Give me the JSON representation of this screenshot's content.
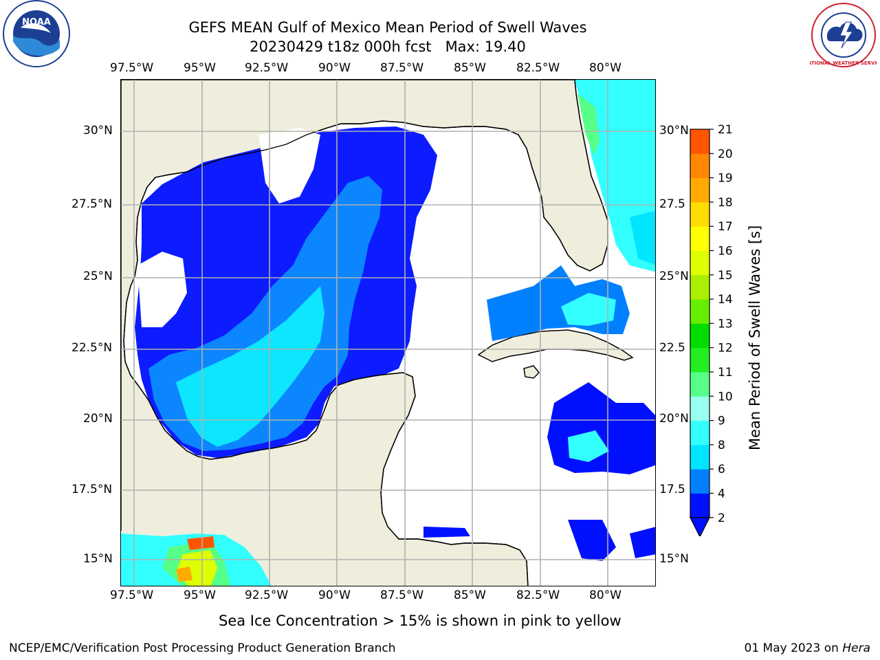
{
  "header": {
    "title_line1": "GEFS MEAN Gulf of Mexico Mean Period of Swell Waves",
    "title_line2": "20230429 t18z 000h fcst   Max: 19.40"
  },
  "logos": {
    "left": "NOAA",
    "right": "NATIONAL WEATHER SERVICE"
  },
  "map": {
    "lon_labels": [
      "97.5°W",
      "95°W",
      "92.5°W",
      "90°W",
      "87.5°W",
      "85°W",
      "82.5°W",
      "80°W"
    ],
    "lat_labels_left": [
      "30°N",
      "27.5°N",
      "25°N",
      "22.5°N",
      "20°N",
      "17.5°N",
      "15°N"
    ],
    "lat_labels_right": [
      "30°N",
      "27.5",
      "25°N",
      "22.5",
      "20°N",
      "17.5",
      "15°N"
    ],
    "note": "Sea Ice Concentration > 15% is shown in pink to yellow",
    "colors": {
      "land": "#efeedd",
      "sea": "#ffffff",
      "grid": "#b0b0b0"
    }
  },
  "colorbar": {
    "label": "Mean Period of Swell Waves [s]",
    "ticks": [
      "2",
      "4",
      "6",
      "8",
      "9",
      "10",
      "11",
      "12",
      "13",
      "14",
      "15",
      "16",
      "17",
      "18",
      "19",
      "20",
      "21"
    ],
    "colors": [
      "#0010ff",
      "#0080ff",
      "#00e5ff",
      "#33ffff",
      "#99ffee",
      "#55ff88",
      "#22ee22",
      "#00dd00",
      "#66ee00",
      "#aaee00",
      "#ddff00",
      "#ffff00",
      "#ffdd00",
      "#ffaa00",
      "#ff8800",
      "#ff5500",
      "#ff2200",
      "#ff0000"
    ]
  },
  "footer": {
    "left": "NCEP/EMC/Verification Post Processing Product Generation Branch",
    "right_date": "01 May 2023 on",
    "right_host": "Hera"
  }
}
